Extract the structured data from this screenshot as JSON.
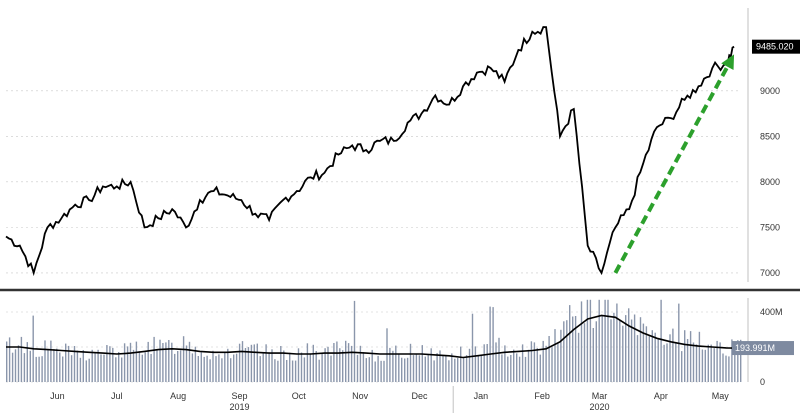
{
  "chart_data": [
    {
      "type": "line",
      "panel": "price",
      "y_ticks": [
        7000,
        7500,
        8000,
        8500,
        9000
      ],
      "y_tick_labels": [
        "7000",
        "7500",
        "8000",
        "8500",
        "9000"
      ],
      "ylim": [
        6900,
        9800
      ],
      "last_value_label": "9485.020",
      "grid": true,
      "series": [
        {
          "color": "#000000",
          "x": [
            "2019-05-20",
            "2019-05-27",
            "2019-06-03",
            "2019-06-10",
            "2019-06-17",
            "2019-06-24",
            "2019-07-01",
            "2019-07-08",
            "2019-07-15",
            "2019-07-22",
            "2019-07-29",
            "2019-08-05",
            "2019-08-12",
            "2019-08-19",
            "2019-08-26",
            "2019-09-02",
            "2019-09-09",
            "2019-09-16",
            "2019-09-23",
            "2019-09-30",
            "2019-10-07",
            "2019-10-14",
            "2019-10-21",
            "2019-10-28",
            "2019-11-04",
            "2019-11-11",
            "2019-11-18",
            "2019-11-25",
            "2019-12-02",
            "2019-12-09",
            "2019-12-16",
            "2019-12-23",
            "2019-12-30",
            "2020-01-06",
            "2020-01-13",
            "2020-01-20",
            "2020-01-27",
            "2020-02-03",
            "2020-02-10",
            "2020-02-17",
            "2020-02-24",
            "2020-03-02",
            "2020-03-09",
            "2020-03-16",
            "2020-03-23",
            "2020-03-30",
            "2020-04-06",
            "2020-04-13",
            "2020-04-20",
            "2020-04-27",
            "2020-05-04",
            "2020-05-11",
            "2020-05-18",
            "2020-05-22"
          ],
          "values": [
            7400,
            7300,
            7000,
            7500,
            7600,
            7750,
            7800,
            7950,
            7950,
            8000,
            7500,
            7600,
            7700,
            7500,
            7800,
            7900,
            7850,
            7800,
            7650,
            7580,
            7800,
            7900,
            8050,
            8100,
            8300,
            8400,
            8350,
            8450,
            8450,
            8650,
            8750,
            8950,
            8850,
            9050,
            9200,
            9250,
            9100,
            9450,
            9650,
            9700,
            8500,
            8800,
            7300,
            7000,
            7500,
            7700,
            8200,
            8600,
            8700,
            8900,
            9050,
            9250,
            9300,
            9485.02
          ]
        }
      ],
      "annotation": {
        "type": "dashed-arrow",
        "color": "#2ca02c",
        "from": {
          "x": "2020-03-23",
          "y": 7000
        },
        "to": {
          "x": "2020-05-22",
          "y": 9400
        }
      }
    },
    {
      "type": "bar",
      "panel": "volume",
      "y_ticks": [
        0,
        200,
        400
      ],
      "y_tick_labels": [
        "0",
        "200M",
        "400M"
      ],
      "ylim": [
        0,
        480
      ],
      "last_value_label": "193.991M",
      "grid": true,
      "bar_color": "#8a96ab",
      "average_line": {
        "color": "#000000",
        "values": [
          200,
          200,
          190,
          185,
          180,
          175,
          170,
          165,
          160,
          165,
          175,
          185,
          190,
          185,
          175,
          170,
          170,
          175,
          170,
          165,
          165,
          160,
          160,
          165,
          165,
          170,
          165,
          160,
          160,
          160,
          160,
          155,
          150,
          140,
          150,
          160,
          170,
          175,
          180,
          190,
          230,
          300,
          360,
          380,
          370,
          320,
          280,
          250,
          230,
          215,
          205,
          200,
          195,
          193.991
        ]
      },
      "bar_samples": [
        210,
        230,
        190,
        200,
        180,
        170,
        160,
        180,
        175,
        190,
        220,
        200,
        210,
        240,
        180,
        170,
        175,
        190,
        180,
        170,
        165,
        170,
        180,
        175,
        190,
        200,
        170,
        160,
        165,
        180,
        200,
        160,
        150,
        170,
        190,
        200,
        210,
        190,
        200,
        230,
        320,
        380,
        420,
        450,
        400,
        340,
        300,
        280,
        260,
        240,
        230,
        220,
        210,
        194
      ]
    }
  ],
  "x_axis": {
    "month_labels": [
      {
        "label": "Jun",
        "x": "2019-06-15"
      },
      {
        "label": "Jul",
        "x": "2019-07-15"
      },
      {
        "label": "Aug",
        "x": "2019-08-15"
      },
      {
        "label": "Sep",
        "x": "2019-09-15"
      },
      {
        "label": "Oct",
        "x": "2019-10-15"
      },
      {
        "label": "Nov",
        "x": "2019-11-15"
      },
      {
        "label": "Dec",
        "x": "2019-12-15"
      },
      {
        "label": "Jan",
        "x": "2020-01-15"
      },
      {
        "label": "Feb",
        "x": "2020-02-15"
      },
      {
        "label": "Mar",
        "x": "2020-03-15"
      },
      {
        "label": "Apr",
        "x": "2020-04-15"
      },
      {
        "label": "May",
        "x": "2020-05-15"
      }
    ],
    "year_labels": [
      {
        "label": "2019",
        "x": "2019-09-15"
      },
      {
        "label": "2020",
        "x": "2020-03-15"
      }
    ],
    "range": [
      "2019-05-20",
      "2020-05-25"
    ]
  }
}
